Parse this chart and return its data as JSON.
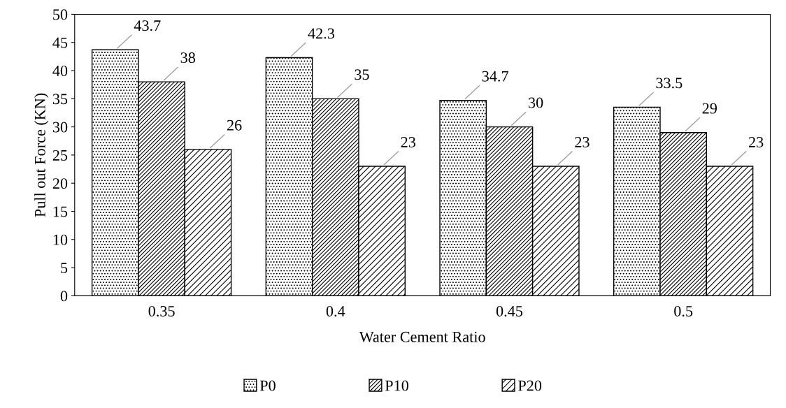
{
  "chart_data": {
    "type": "bar",
    "xlabel": "Water Cement Ratio",
    "ylabel": "Pull out Force (KN)",
    "categories": [
      "0.35",
      "0.4",
      "0.45",
      "0.5"
    ],
    "series": [
      {
        "name": "P0",
        "color": "#000000",
        "values": [
          43.7,
          42.3,
          34.7,
          33.5
        ]
      },
      {
        "name": "P10",
        "color": "#000000",
        "values": [
          38,
          35,
          30,
          29
        ]
      },
      {
        "name": "P20",
        "color": "#000000",
        "values": [
          26,
          23,
          23,
          23
        ]
      }
    ],
    "ylim": [
      0,
      50
    ],
    "yticks": [
      0,
      5,
      10,
      15,
      20,
      25,
      30,
      35,
      40,
      45,
      50
    ],
    "grid": false,
    "legend": "bottom",
    "data_labels": true
  }
}
